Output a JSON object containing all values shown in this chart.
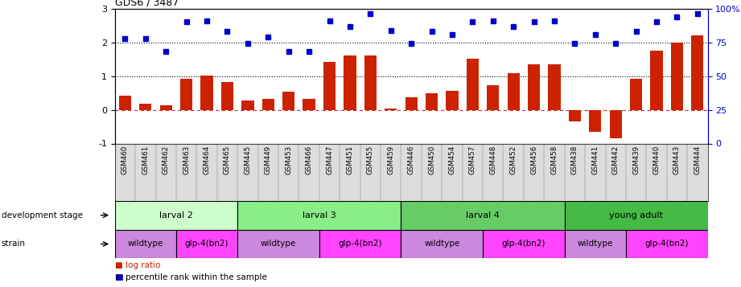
{
  "title": "GDS6 / 3487",
  "samples": [
    "GSM460",
    "GSM461",
    "GSM462",
    "GSM463",
    "GSM464",
    "GSM465",
    "GSM445",
    "GSM449",
    "GSM453",
    "GSM466",
    "GSM447",
    "GSM451",
    "GSM455",
    "GSM459",
    "GSM446",
    "GSM450",
    "GSM454",
    "GSM457",
    "GSM448",
    "GSM452",
    "GSM456",
    "GSM458",
    "GSM438",
    "GSM441",
    "GSM442",
    "GSM439",
    "GSM440",
    "GSM443",
    "GSM444"
  ],
  "log_ratio": [
    0.42,
    0.18,
    0.14,
    0.92,
    1.02,
    0.83,
    0.28,
    0.32,
    0.53,
    0.33,
    1.42,
    1.62,
    1.6,
    0.04,
    0.38,
    0.49,
    0.55,
    1.52,
    0.73,
    1.08,
    1.35,
    1.35,
    -0.35,
    -0.65,
    -0.85,
    0.92,
    1.75,
    2.0,
    2.2
  ],
  "percentile_pct": [
    78,
    78,
    68,
    90,
    91,
    83,
    74,
    79,
    68,
    68,
    91,
    87,
    96,
    84,
    74,
    83,
    81,
    90,
    91,
    87,
    90,
    91,
    74,
    81,
    74,
    83,
    90,
    94,
    96
  ],
  "development_stages": [
    {
      "label": "larval 2",
      "start": 0,
      "end": 6,
      "color": "#ccffcc"
    },
    {
      "label": "larval 3",
      "start": 6,
      "end": 14,
      "color": "#88ee88"
    },
    {
      "label": "larval 4",
      "start": 14,
      "end": 22,
      "color": "#66cc66"
    },
    {
      "label": "young adult",
      "start": 22,
      "end": 29,
      "color": "#44bb44"
    }
  ],
  "strains": [
    {
      "label": "wildtype",
      "start": 0,
      "end": 3,
      "color": "#cc88dd"
    },
    {
      "label": "glp-4(bn2)",
      "start": 3,
      "end": 6,
      "color": "#ff44ff"
    },
    {
      "label": "wildtype",
      "start": 6,
      "end": 10,
      "color": "#cc88dd"
    },
    {
      "label": "glp-4(bn2)",
      "start": 10,
      "end": 14,
      "color": "#ff44ff"
    },
    {
      "label": "wildtype",
      "start": 14,
      "end": 18,
      "color": "#cc88dd"
    },
    {
      "label": "glp-4(bn2)",
      "start": 18,
      "end": 22,
      "color": "#ff44ff"
    },
    {
      "label": "wildtype",
      "start": 22,
      "end": 25,
      "color": "#cc88dd"
    },
    {
      "label": "glp-4(bn2)",
      "start": 25,
      "end": 29,
      "color": "#ff44ff"
    }
  ],
  "bar_color": "#cc2200",
  "dot_color": "#0000cc",
  "ylim_left": [
    -1,
    3
  ],
  "ylim_right": [
    0,
    100
  ],
  "yticks_left": [
    -1,
    0,
    1,
    2,
    3
  ],
  "yticks_right": [
    0,
    25,
    50,
    75,
    100
  ],
  "hlines": [
    1.0,
    2.0
  ],
  "label_bg": "#dddddd"
}
